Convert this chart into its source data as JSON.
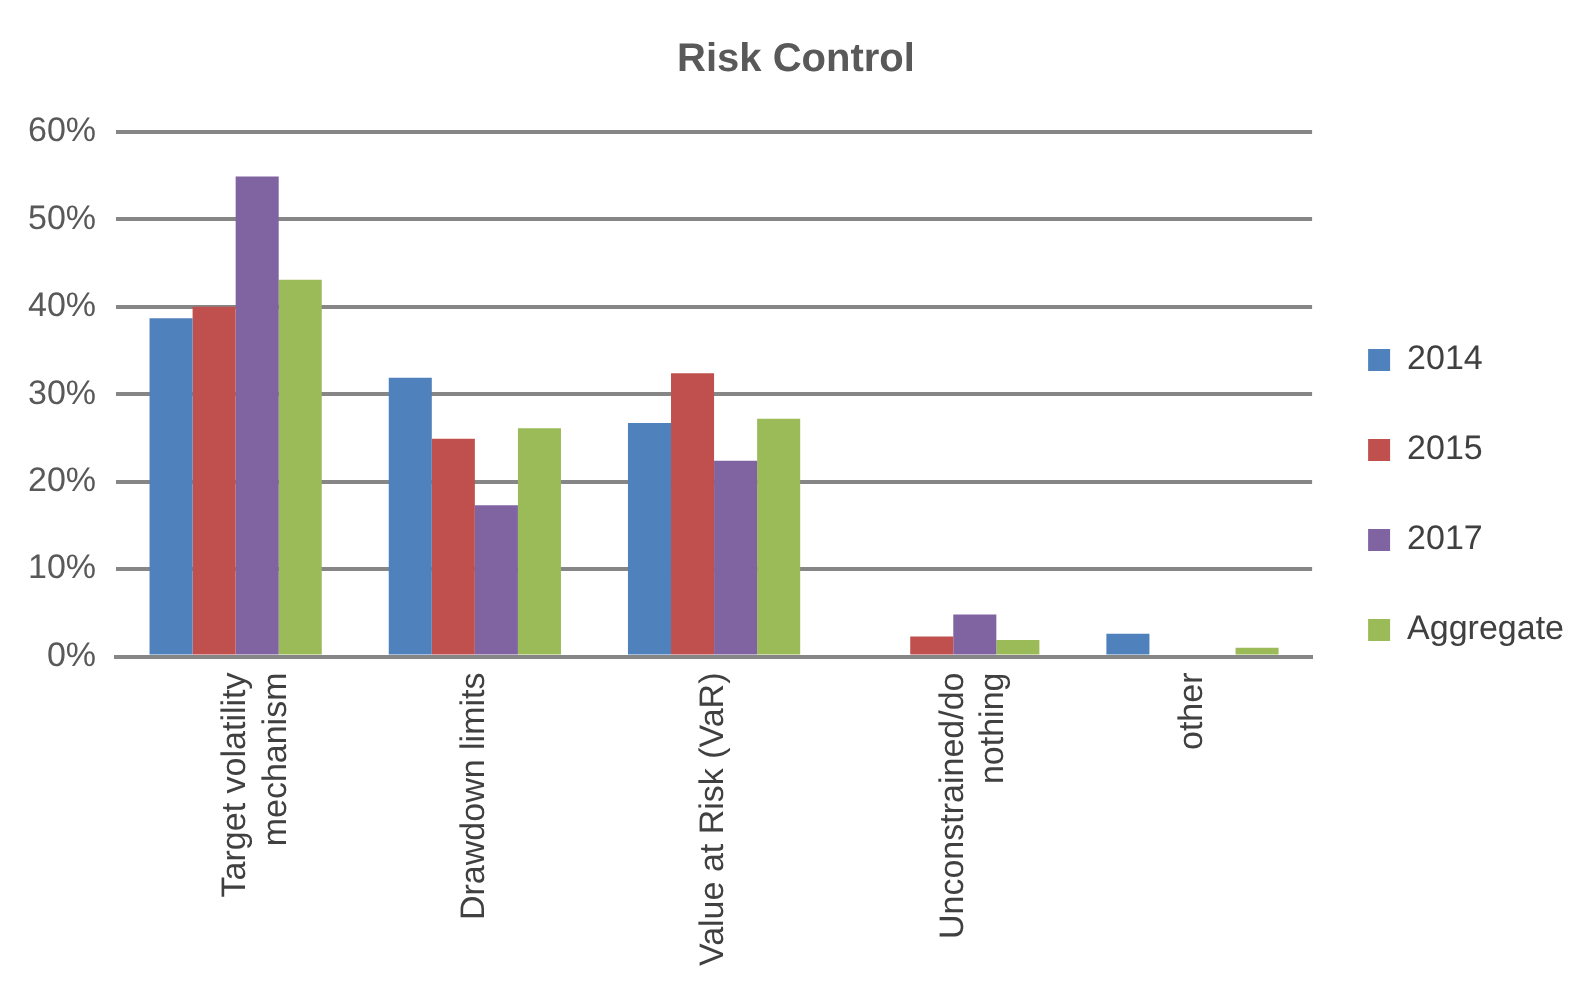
{
  "chart_data": {
    "type": "bar",
    "title": "Risk Control",
    "categories": [
      "Target volatility mechanism",
      "Drawdown limits",
      "Value at Risk (VaR)",
      "Unconstrained/do nothing",
      "other"
    ],
    "series": [
      {
        "name": "2014",
        "color": "#4f81bd",
        "values": [
          38.7,
          31.9,
          26.7,
          0,
          2.6
        ]
      },
      {
        "name": "2015",
        "color": "#c0504d",
        "values": [
          40,
          24.9,
          32.4,
          2.3,
          0
        ]
      },
      {
        "name": "2017",
        "color": "#8064a2",
        "values": [
          54.9,
          17.3,
          22.4,
          4.8,
          0
        ]
      },
      {
        "name": "Aggregate",
        "color": "#9bbb59",
        "values": [
          43.1,
          26.1,
          27.2,
          1.9,
          1.0
        ]
      }
    ],
    "ylim": [
      0,
      60
    ],
    "yticks": [
      {
        "value": 0,
        "label": "0%"
      },
      {
        "value": 10,
        "label": "10%"
      },
      {
        "value": 20,
        "label": "20%"
      },
      {
        "value": 30,
        "label": "30%"
      },
      {
        "value": 40,
        "label": "40%"
      },
      {
        "value": 50,
        "label": "50%"
      },
      {
        "value": 60,
        "label": "60%"
      }
    ],
    "grid": "y",
    "legend": "right"
  }
}
